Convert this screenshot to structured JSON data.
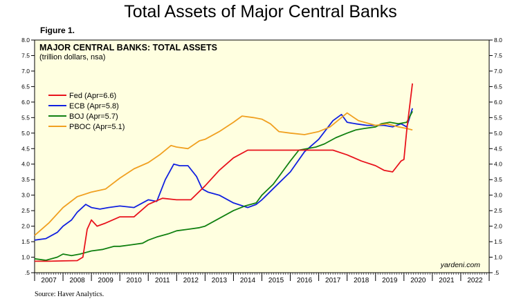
{
  "page": {
    "title": "Total Assets of Major Central Banks",
    "figure_label": "Figure 1.",
    "source": "Source: Haver Analytics.",
    "credit": "yardeni.com"
  },
  "chart_data": {
    "type": "line",
    "title": "MAJOR CENTRAL BANKS: TOTAL ASSETS",
    "subtitle": "(trillion dollars, nsa)",
    "xlabel": "",
    "ylabel": "",
    "xlim": [
      2007,
      2023
    ],
    "ylim": [
      0.5,
      8.0
    ],
    "y_ticks": [
      0.5,
      1.0,
      1.5,
      2.0,
      2.5,
      3.0,
      3.5,
      4.0,
      4.5,
      5.0,
      5.5,
      6.0,
      6.5,
      7.0,
      7.5,
      8.0
    ],
    "y_tick_labels": [
      ".5",
      "1.0",
      "1.5",
      "2.0",
      "2.5",
      "3.0",
      "3.5",
      "4.0",
      "4.5",
      "5.0",
      "5.5",
      "6.0",
      "6.5",
      "7.0",
      "7.5",
      "8.0"
    ],
    "x_tick_labels": [
      "2007",
      "2008",
      "2009",
      "2010",
      "2011",
      "2012",
      "2013",
      "2014",
      "2015",
      "2016",
      "2017",
      "2018",
      "2019",
      "2020",
      "2021",
      "2022"
    ],
    "grid": false,
    "legend_position": "top-left",
    "background": "#ffffe0",
    "series": [
      {
        "name": "Fed (Apr=6.6)",
        "color": "#e8121b",
        "x": [
          2007.0,
          2007.5,
          2008.0,
          2008.5,
          2008.7,
          2008.85,
          2009.0,
          2009.2,
          2009.5,
          2010.0,
          2010.5,
          2011.0,
          2011.5,
          2012.0,
          2012.5,
          2013.0,
          2013.5,
          2014.0,
          2014.5,
          2015.0,
          2015.5,
          2016.0,
          2016.5,
          2017.0,
          2017.5,
          2018.0,
          2018.5,
          2019.0,
          2019.3,
          2019.6,
          2019.9,
          2020.0,
          2020.1,
          2020.3
        ],
        "y": [
          0.87,
          0.87,
          0.88,
          0.89,
          1.0,
          1.9,
          2.2,
          2.0,
          2.1,
          2.3,
          2.3,
          2.7,
          2.9,
          2.85,
          2.85,
          3.3,
          3.8,
          4.2,
          4.45,
          4.45,
          4.45,
          4.45,
          4.45,
          4.45,
          4.45,
          4.3,
          4.1,
          3.95,
          3.8,
          3.75,
          4.1,
          4.15,
          5.1,
          6.6
        ]
      },
      {
        "name": "ECB (Apr=5.8)",
        "color": "#1020e0",
        "x": [
          2007.0,
          2007.4,
          2007.8,
          2008.0,
          2008.3,
          2008.5,
          2008.8,
          2009.0,
          2009.3,
          2009.6,
          2010.0,
          2010.5,
          2011.0,
          2011.3,
          2011.6,
          2011.9,
          2012.1,
          2012.4,
          2012.7,
          2012.9,
          2013.1,
          2013.5,
          2014.0,
          2014.5,
          2014.8,
          2015.0,
          2015.5,
          2016.0,
          2016.5,
          2017.0,
          2017.5,
          2017.8,
          2018.0,
          2018.3,
          2018.7,
          2019.0,
          2019.3,
          2019.6,
          2019.9,
          2020.1,
          2020.3
        ],
        "y": [
          1.55,
          1.6,
          1.8,
          2.0,
          2.2,
          2.45,
          2.7,
          2.6,
          2.55,
          2.6,
          2.65,
          2.6,
          2.85,
          2.8,
          3.5,
          4.0,
          3.95,
          3.95,
          3.6,
          3.2,
          3.1,
          3.0,
          2.75,
          2.6,
          2.7,
          2.85,
          3.3,
          3.75,
          4.4,
          4.8,
          5.4,
          5.6,
          5.35,
          5.3,
          5.25,
          5.25,
          5.25,
          5.2,
          5.3,
          5.2,
          5.8
        ]
      },
      {
        "name": "BOJ (Apr=5.7)",
        "color": "#108010",
        "x": [
          2007.0,
          2007.4,
          2007.8,
          2008.0,
          2008.3,
          2008.6,
          2009.0,
          2009.4,
          2009.8,
          2010.0,
          2010.4,
          2010.8,
          2011.0,
          2011.3,
          2011.7,
          2012.0,
          2012.4,
          2012.8,
          2013.0,
          2013.4,
          2013.8,
          2014.0,
          2014.4,
          2014.8,
          2015.0,
          2015.4,
          2015.8,
          2016.0,
          2016.3,
          2016.6,
          2016.9,
          2017.2,
          2017.6,
          2018.0,
          2018.3,
          2018.6,
          2019.0,
          2019.2,
          2019.5,
          2019.8,
          2020.1,
          2020.3
        ],
        "y": [
          0.95,
          0.9,
          1.0,
          1.1,
          1.05,
          1.1,
          1.2,
          1.25,
          1.35,
          1.35,
          1.4,
          1.45,
          1.55,
          1.65,
          1.75,
          1.85,
          1.9,
          1.95,
          2.0,
          2.2,
          2.4,
          2.5,
          2.65,
          2.75,
          3.0,
          3.35,
          3.85,
          4.1,
          4.45,
          4.5,
          4.55,
          4.65,
          4.85,
          5.0,
          5.1,
          5.15,
          5.2,
          5.3,
          5.35,
          5.3,
          5.35,
          5.7
        ]
      },
      {
        "name": "PBOC (Apr=5.1)",
        "color": "#f0a020",
        "x": [
          2007.0,
          2007.5,
          2008.0,
          2008.5,
          2009.0,
          2009.5,
          2010.0,
          2010.5,
          2011.0,
          2011.4,
          2011.8,
          2012.0,
          2012.4,
          2012.8,
          2013.0,
          2013.5,
          2014.0,
          2014.3,
          2014.7,
          2015.0,
          2015.3,
          2015.6,
          2016.0,
          2016.5,
          2017.0,
          2017.4,
          2017.8,
          2018.0,
          2018.4,
          2018.8,
          2019.0,
          2019.4,
          2019.8,
          2020.1,
          2020.3
        ],
        "y": [
          1.7,
          2.1,
          2.6,
          2.95,
          3.1,
          3.2,
          3.55,
          3.85,
          4.05,
          4.3,
          4.6,
          4.55,
          4.5,
          4.75,
          4.8,
          5.05,
          5.35,
          5.55,
          5.5,
          5.45,
          5.3,
          5.05,
          5.0,
          4.95,
          5.05,
          5.2,
          5.5,
          5.65,
          5.4,
          5.3,
          5.25,
          5.3,
          5.2,
          5.15,
          5.1
        ]
      }
    ]
  }
}
